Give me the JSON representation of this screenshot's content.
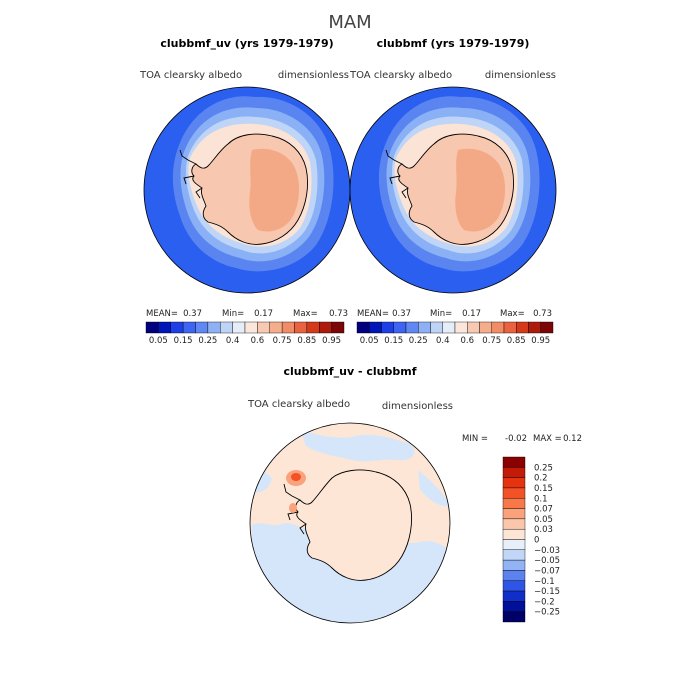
{
  "figure_title": "MAM",
  "chart_data": [
    {
      "type": "heatmap",
      "title": "clubbmf_uv (yrs 1979-1979)",
      "variable": "TOA clearsky albedo",
      "units": "dimensionless",
      "stats": {
        "mean_label": "MEAN=",
        "mean": "0.37",
        "min_label": "Min=",
        "min": "0.17",
        "max_label": "Max=",
        "max": "0.73"
      },
      "colorbar_ticks": [
        "0.05",
        "0.15",
        "0.25",
        "0.4",
        "0.6",
        "0.75",
        "0.85",
        "0.95"
      ]
    },
    {
      "type": "heatmap",
      "title": "clubbmf (yrs 1979-1979)",
      "variable": "TOA clearsky albedo",
      "units": "dimensionless",
      "stats": {
        "mean_label": "MEAN=",
        "mean": "0.37",
        "min_label": "Min=",
        "min": "0.17",
        "max_label": "Max=",
        "max": "0.73"
      },
      "colorbar_ticks": [
        "0.05",
        "0.15",
        "0.25",
        "0.4",
        "0.6",
        "0.75",
        "0.85",
        "0.95"
      ]
    },
    {
      "type": "heatmap",
      "title": "clubbmf_uv - clubbmf",
      "variable": "TOA clearsky albedo",
      "units": "dimensionless",
      "stats": {
        "min_label": "MIN =",
        "min": "-0.02",
        "max_label": "MAX =",
        "max": "0.12"
      },
      "colorbar_ticks": [
        "0.25",
        "0.2",
        "0.15",
        "0.1",
        "0.07",
        "0.05",
        "0.03",
        "0",
        "-0.03",
        "-0.05",
        "-0.07",
        "-0.1",
        "-0.15",
        "-0.2",
        "-0.25"
      ]
    }
  ],
  "colors": {
    "abs_scale": [
      "#00007f",
      "#0015b8",
      "#1f3fe6",
      "#3d64f2",
      "#6088f2",
      "#8eb0f5",
      "#bed4f7",
      "#e4edf8",
      "#fbe6dc",
      "#f7c9b2",
      "#f5ad8c",
      "#f18c66",
      "#ea6340",
      "#d43a1a",
      "#ac1b0c",
      "#7a0606"
    ],
    "diff_scale": [
      "#8b0000",
      "#c41a08",
      "#e53310",
      "#f35226",
      "#f8784a",
      "#f9a27c",
      "#fbc7ab",
      "#fde5d6",
      "#e7effa",
      "#c2d7f7",
      "#93b4f4",
      "#5c82f0",
      "#2f55e6",
      "#0f2fc8",
      "#001098",
      "#000066"
    ],
    "ocean": "#2b5ff0",
    "sea_ice_1": "#5a85f0",
    "sea_ice_2": "#8ab0f5",
    "sea_ice_3": "#bfd5f7",
    "coast_band": "#fbe3d6",
    "land": "#f8c7b0",
    "interior": "#f4a986",
    "diff_bg": "#fde6d6",
    "diff_neg": "#d6e6fa"
  }
}
